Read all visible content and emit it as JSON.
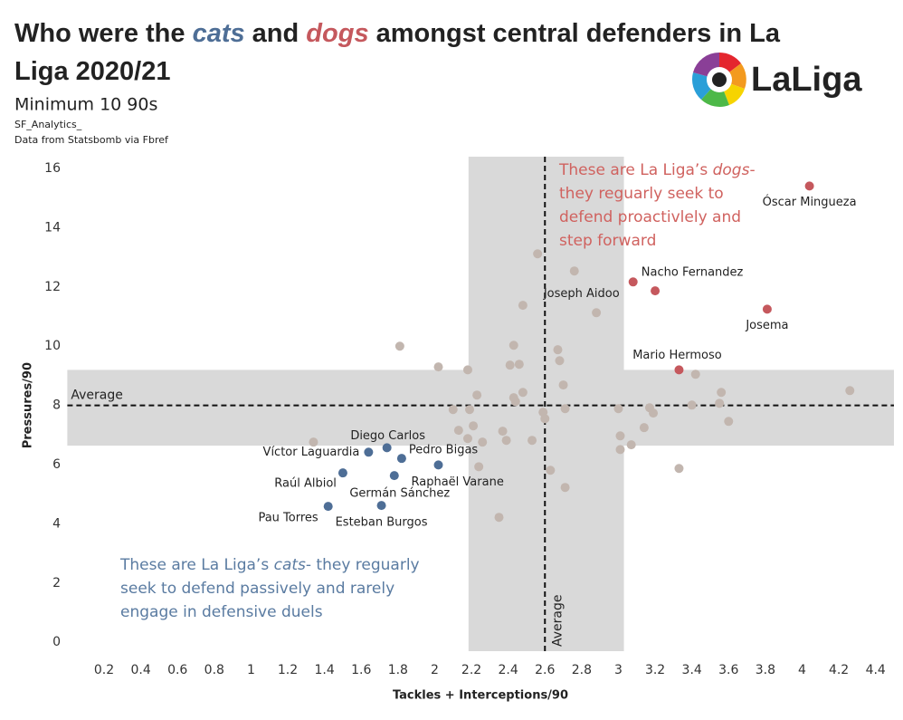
{
  "chart_data": {
    "type": "scatter",
    "title_lines": [
      [
        "Who were the ",
        "cats",
        " and ",
        "dogs",
        "  amongst central defenders in La"
      ],
      [
        "Liga 2020/21"
      ]
    ],
    "subtitle": "Minimum 10 90s",
    "credits": [
      "SF_Analytics_",
      "Data from Statsbomb via Fbref"
    ],
    "logo_text": "LaLiga",
    "x_label": "Tackles + Interceptions/90",
    "y_label": "Pressures/90",
    "xlim": [
      0,
      4.5
    ],
    "ylim": [
      -0.3,
      16.4
    ],
    "xticks": [
      0.2,
      0.4,
      0.6,
      0.8,
      1.0,
      1.2,
      1.4,
      1.6,
      1.8,
      2.0,
      2.2,
      2.4,
      2.6,
      2.8,
      3.0,
      3.2,
      3.4,
      3.6,
      3.8,
      4.0,
      4.2,
      4.4
    ],
    "yticks": [
      0,
      2,
      4,
      6,
      8,
      10,
      12,
      14,
      16
    ],
    "x_band": [
      2.184,
      3.03
    ],
    "y_band": [
      6.64,
      9.2
    ],
    "band_color": "#d9d9d9",
    "x_reference": {
      "value": 2.6,
      "label": "Average"
    },
    "y_reference": {
      "value": 8,
      "label": "Average"
    },
    "annotations": [
      {
        "color": "#d0625f",
        "lines": [
          [
            "These are La Liga’s ",
            "dogs",
            "-"
          ],
          [
            "they reguarly seek to"
          ],
          [
            "defend proactivlely and"
          ],
          [
            "step forward"
          ]
        ]
      },
      {
        "color": "#5a7ba1",
        "lines": [
          [
            "These are La Liga’s ",
            "cats",
            "- they reguarly"
          ],
          [
            "seek to defend passively and rarely"
          ],
          [
            "engage in defensive duels"
          ]
        ]
      }
    ],
    "series": [
      {
        "color": "#c5585d",
        "labels": [
          "Óscar Mingueza",
          "Nacho Fernandez",
          "Joseph Aidoo",
          "Josema",
          "Mario Hermoso"
        ],
        "x": [
          4.04,
          3.2,
          3.08,
          3.81,
          3.33
        ],
        "values": [
          15.41,
          11.87,
          12.17,
          11.25,
          9.2
        ]
      },
      {
        "color": "#4e6e96",
        "labels": [
          "Diego Carlos",
          "Víctor Laguardia",
          "Pedro Bigas",
          "Raphaël Varane",
          "Raúl Albiol",
          "Germán Sánchez",
          "Pau Torres",
          "Esteban Burgos"
        ],
        "x": [
          1.74,
          1.64,
          1.82,
          2.02,
          1.5,
          1.78,
          1.42,
          1.71
        ],
        "values": [
          6.57,
          6.42,
          6.21,
          5.99,
          5.72,
          5.63,
          4.59,
          4.62
        ]
      },
      {
        "color": "#c2b6af",
        "x": [
          2.56,
          2.76,
          2.88,
          2.48,
          1.81,
          2.43,
          2.67,
          2.02,
          2.18,
          2.41,
          2.46,
          2.68,
          3.42,
          2.7,
          2.23,
          2.43,
          2.48,
          2.44,
          3.56,
          4.26,
          2.1,
          2.19,
          2.59,
          2.71,
          3.0,
          3.17,
          3.19,
          3.4,
          3.55,
          3.6,
          2.6,
          2.13,
          2.21,
          2.37,
          3.14,
          1.34,
          2.18,
          2.26,
          2.39,
          2.53,
          3.01,
          3.07,
          3.01,
          2.24,
          2.63,
          3.33,
          2.71,
          2.35
        ],
        "values": [
          13.12,
          12.54,
          11.13,
          11.38,
          10.0,
          10.03,
          9.88,
          9.3,
          9.2,
          9.36,
          9.39,
          9.51,
          9.05,
          8.69,
          8.35,
          8.26,
          8.44,
          8.13,
          8.44,
          8.5,
          7.86,
          7.86,
          7.77,
          7.89,
          7.89,
          7.92,
          7.74,
          8.01,
          8.07,
          7.46,
          7.55,
          7.16,
          7.31,
          7.13,
          7.25,
          6.76,
          6.88,
          6.76,
          6.82,
          6.82,
          6.97,
          6.67,
          6.51,
          5.93,
          5.81,
          5.87,
          5.23,
          4.22
        ]
      }
    ]
  }
}
